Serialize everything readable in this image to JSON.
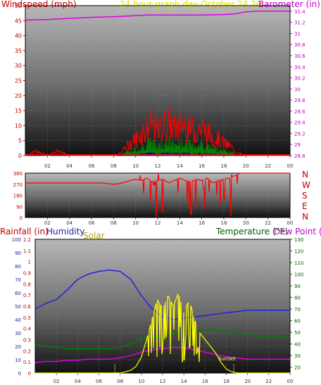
{
  "header": {
    "wind_title": "Windspeed (mph)",
    "date_title": "24 hour graph day   October 24 20",
    "baro_title": "Barometer (in)"
  },
  "direction_labels": [
    "N",
    "W",
    "S",
    "E",
    "N"
  ],
  "bottom_titles": {
    "rainfall": "Rainfall (in)",
    "humidity": "Humidity",
    "solar": "Solar",
    "temperature": "Temperature (°F)",
    "dewpoint": "Dew Point ("
  },
  "annotations": {
    "sunset": "SunSet"
  },
  "colors": {
    "wind": "#ff0000",
    "wind_avg": "#008000",
    "wind_low": "#0000c0",
    "barometer": "#e000e0",
    "direction": "#ff0000",
    "humidity": "#2020e0",
    "solar": "#ffff00",
    "temperature": "#e000e0",
    "dewpoint": "#008000",
    "rain_axis": "#c00000",
    "hum_axis": "#2020a0",
    "temp_axis": "#006000"
  },
  "chart_data": [
    {
      "type": "line",
      "title": "Windspeed (mph) / Barometer (in)",
      "x_ticks": [
        "02",
        "04",
        "06",
        "08",
        "10",
        "12",
        "14",
        "16",
        "18",
        "20",
        "22",
        "00"
      ],
      "y_left_ticks": [
        0,
        5,
        10,
        15,
        20,
        25,
        30,
        35,
        40,
        45,
        50
      ],
      "y_right_ticks": [
        "28.8",
        "29",
        "29.2",
        "29.4",
        "29.6",
        "29.8",
        "30",
        "30.2",
        "30.4",
        "30.6",
        "30.8",
        "31",
        "31.2",
        "31.4"
      ],
      "ylim_left": [
        0,
        50
      ],
      "ylim_right": [
        28.8,
        31.5
      ],
      "series": [
        {
          "name": "Windspeed (mph)",
          "x": [
            0,
            1,
            2,
            3,
            4,
            5,
            6,
            7,
            8,
            8.6,
            9,
            9.5,
            10,
            10.5,
            11,
            11.5,
            12,
            12.5,
            13,
            13.5,
            14,
            14.5,
            15,
            15.5,
            16,
            16.5,
            17,
            17.5,
            18,
            18.5,
            19,
            19.5,
            20,
            21,
            22,
            23,
            24
          ],
          "values": [
            0,
            2,
            0,
            2,
            0,
            0,
            0,
            0,
            0,
            1,
            3,
            5,
            7,
            9,
            11,
            13,
            10,
            12,
            14,
            11,
            12,
            13,
            11,
            10,
            12,
            9,
            8,
            7,
            5,
            4,
            2,
            1,
            0,
            0,
            0,
            0,
            0
          ]
        },
        {
          "name": "Barometer (in)",
          "x": [
            0,
            2,
            4,
            6,
            8,
            9,
            10,
            11,
            12,
            14,
            16,
            18,
            19,
            20,
            21,
            22,
            23,
            24
          ],
          "values": [
            31.24,
            31.25,
            31.27,
            31.29,
            31.3,
            31.31,
            31.32,
            31.33,
            31.33,
            31.33,
            31.33,
            31.34,
            31.35,
            31.39,
            31.4,
            31.4,
            31.4,
            31.4
          ]
        }
      ]
    },
    {
      "type": "line",
      "title": "Wind direction",
      "x_ticks": [
        "02",
        "04",
        "06",
        "08",
        "10",
        "12",
        "14",
        "16",
        "18",
        "20",
        "22",
        "00"
      ],
      "y_ticks": [
        0,
        90,
        180,
        270,
        360
      ],
      "ylim": [
        0,
        360
      ],
      "series": [
        {
          "name": "Direction (deg)",
          "x": [
            0,
            4,
            7,
            8,
            8.5,
            9,
            9.5,
            10,
            10.5,
            11,
            11.5,
            12,
            12.5,
            13,
            13.5,
            14,
            14.5,
            15,
            15.5,
            16,
            16.5,
            17,
            17.5,
            18,
            18.5,
            19,
            19.5,
            20,
            21,
            22,
            23,
            24
          ],
          "values": [
            280,
            280,
            280,
            270,
            275,
            285,
            300,
            310,
            300,
            320,
            290,
            300,
            310,
            280,
            300,
            320,
            300,
            290,
            310,
            300,
            320,
            280,
            300,
            310,
            320,
            340,
            360,
            360,
            360,
            360,
            360,
            360
          ]
        }
      ]
    },
    {
      "type": "line",
      "title": "Rainfall / Humidity / Solar / Temperature / Dew Point",
      "x_ticks": [
        "02",
        "04",
        "06",
        "08",
        "10",
        "12",
        "14",
        "16",
        "18",
        "20",
        "22",
        "00"
      ],
      "y_left_rain_ticks": [
        "0",
        "0.1",
        "0.2",
        "0.3",
        "0.4",
        "0.5",
        "0.6",
        "0.7",
        "0.8",
        "0.9",
        "1",
        "1.1",
        "1.2"
      ],
      "y_left_hum_ticks": [
        0,
        10,
        20,
        30,
        40,
        50,
        60,
        70,
        80,
        90,
        100
      ],
      "y_right_ticks": [
        20,
        30,
        40,
        50,
        60,
        70,
        80,
        90,
        100,
        110,
        120,
        130
      ],
      "ylim_humidity": [
        0,
        100
      ],
      "ylim_temperature": [
        15,
        130
      ],
      "series": [
        {
          "name": "Humidity",
          "x": [
            0,
            1,
            2,
            3,
            4,
            5,
            6,
            7,
            8,
            9,
            10,
            11,
            12,
            13,
            14,
            15,
            16,
            17,
            18,
            19,
            20,
            21,
            22,
            23,
            24
          ],
          "values": [
            48,
            52,
            55,
            62,
            70,
            74,
            76,
            77,
            76,
            70,
            58,
            48,
            42,
            40,
            41,
            42,
            43,
            44,
            45,
            46,
            47,
            47,
            47,
            47,
            47
          ]
        },
        {
          "name": "Temperature (°F)",
          "x": [
            0,
            1,
            2,
            3,
            4,
            5,
            6,
            7,
            8,
            9,
            10,
            11,
            12,
            13,
            14,
            15,
            16,
            17,
            18,
            19,
            20,
            21,
            22,
            23,
            24
          ],
          "values": [
            24,
            25,
            25,
            26,
            26,
            27,
            27,
            27,
            28,
            30,
            33,
            35,
            36,
            37,
            37,
            35,
            33,
            31,
            29,
            28,
            27,
            27,
            27,
            27,
            27
          ]
        },
        {
          "name": "Dew Point",
          "x": [
            0,
            1,
            2,
            3,
            4,
            5,
            6,
            7,
            8,
            9,
            10,
            11,
            12,
            13,
            14,
            15,
            16,
            17,
            18,
            19,
            20,
            21,
            22,
            23,
            24
          ],
          "values": [
            40,
            38,
            37,
            36,
            36,
            36,
            36,
            36,
            37,
            40,
            44,
            46,
            47,
            48,
            50,
            52,
            52,
            52,
            51,
            50,
            48,
            47,
            46,
            46,
            46
          ]
        },
        {
          "name": "Solar",
          "x": [
            0,
            6,
            7,
            8,
            9,
            9.5,
            10,
            10.5,
            11,
            11.5,
            12,
            12.5,
            13,
            13.5,
            14,
            14.5,
            15,
            15.5,
            16,
            16.5,
            17,
            17.5,
            18,
            18.5,
            19,
            20,
            24
          ],
          "values": [
            0,
            0,
            0,
            0,
            2,
            5,
            12,
            25,
            40,
            55,
            48,
            58,
            50,
            60,
            45,
            55,
            40,
            30,
            25,
            20,
            15,
            8,
            3,
            1,
            0,
            0,
            0
          ]
        }
      ]
    }
  ]
}
